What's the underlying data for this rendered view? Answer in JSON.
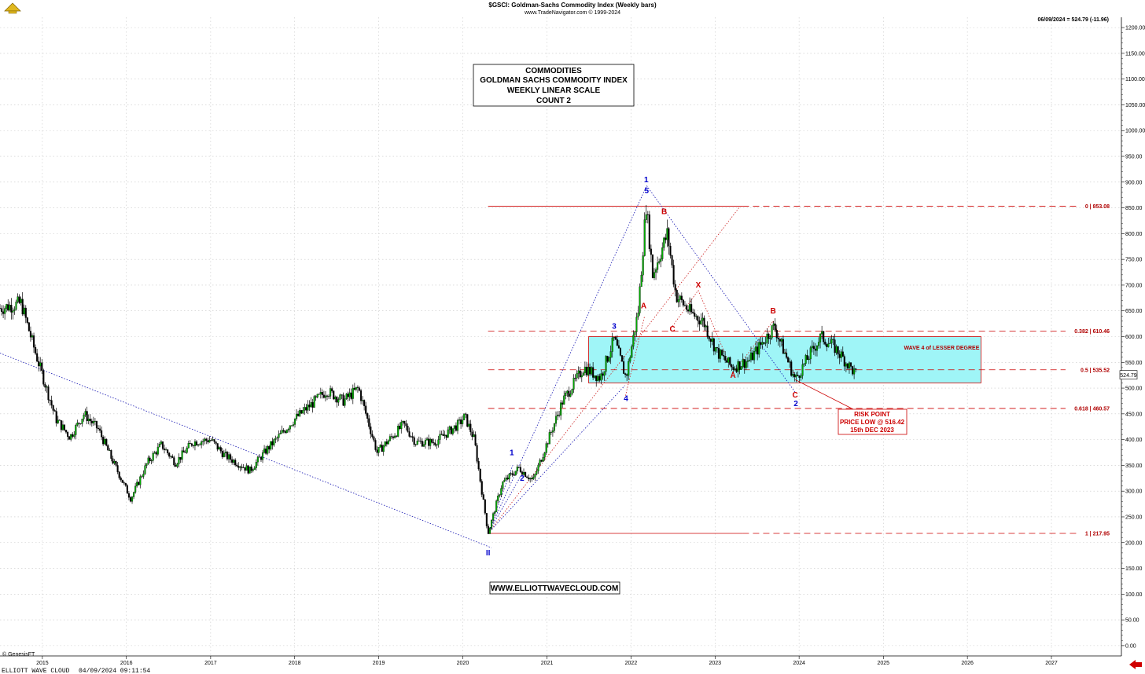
{
  "header": {
    "title": "$GSCI:  Goldman-Sachs Commodity Index  (Weekly bars)",
    "source": "www.TradeNavigator.com © 1999-2024",
    "last_quote": "06/09/2024 = 524.79 (-11.96)"
  },
  "info_box": {
    "lines": [
      "COMMODITIES",
      "GOLDMAN SACHS COMMODITY INDEX",
      "WEEKLY LINEAR SCALE",
      "COUNT 2"
    ]
  },
  "website": "WWW.ELLIOTTWAVECLOUD.COM",
  "copyright": "© GenesisFT",
  "footer": {
    "brand": "ELLIOTT WAVE CLOUD",
    "timestamp": "04/09/2024 09:11:54"
  },
  "price_tag": "524.79",
  "colors": {
    "price": "#000000",
    "bull_body": "#00aa00",
    "fib": "#cc0000",
    "wave_blue": "#0000cc",
    "zone_fill": "#9ff5f7"
  },
  "chart_data": {
    "type": "candlestick",
    "period": "weekly",
    "x_axis": {
      "ticks": [
        "2015",
        "2016",
        "2017",
        "2018",
        "2019",
        "2020",
        "2021",
        "2022",
        "2023",
        "2024",
        "2025",
        "2026",
        "2027"
      ],
      "range": [
        "2014-07-01",
        "2027-11-01"
      ]
    },
    "y_axis": {
      "range": [
        -20,
        1220
      ],
      "step": 50,
      "position": "right"
    },
    "fib_levels": [
      {
        "ratio": "0",
        "price": 853.08,
        "label": "0 | 853.08"
      },
      {
        "ratio": "0.382",
        "price": 610.46,
        "label": "0.382 | 610.46"
      },
      {
        "ratio": "0.5",
        "price": 535.52,
        "label": "0.5 | 535.52"
      },
      {
        "ratio": "0.618",
        "price": 460.57,
        "label": "0.618 | 460.57"
      },
      {
        "ratio": "1",
        "price": 217.95,
        "label": "1 | 217.95"
      }
    ],
    "wave4_zone": {
      "label": "WAVE 4 of LESSER DEGREE",
      "from": "2021-07-01",
      "to": "2026-03-01",
      "top": 600,
      "bottom": 510
    },
    "risk_point": {
      "lines": [
        "RISK POINT",
        "PRICE LOW @ 516.42",
        "15th DEC 2023"
      ],
      "price": 516.42,
      "date": "2023-12-15"
    },
    "wave_labels": [
      {
        "text": "II",
        "date": "2020-04-20",
        "price": 175,
        "color": "blue"
      },
      {
        "text": "1",
        "date": "2020-08-01",
        "price": 370,
        "color": "blue"
      },
      {
        "text": "2",
        "date": "2020-09-15",
        "price": 320,
        "color": "blue"
      },
      {
        "text": "3",
        "date": "2021-10-20",
        "price": 615,
        "color": "blue"
      },
      {
        "text": "4",
        "date": "2021-12-10",
        "price": 475,
        "color": "blue"
      },
      {
        "text": "1",
        "date": "2022-03-08",
        "price": 900,
        "color": "blue"
      },
      {
        "text": "5",
        "date": "2022-03-10",
        "price": 878,
        "color": "blue"
      },
      {
        "text": "2",
        "date": "2023-12-18",
        "price": 465,
        "color": "blue"
      },
      {
        "text": "A",
        "date": "2022-02-25",
        "price": 655,
        "color": "red"
      },
      {
        "text": "B",
        "date": "2022-05-25",
        "price": 838,
        "color": "red"
      },
      {
        "text": "C",
        "date": "2022-06-30",
        "price": 610,
        "color": "red"
      },
      {
        "text": "X",
        "date": "2022-10-20",
        "price": 695,
        "color": "red"
      },
      {
        "text": "A",
        "date": "2023-03-20",
        "price": 520,
        "color": "red"
      },
      {
        "text": "B",
        "date": "2023-09-10",
        "price": 645,
        "color": "red"
      },
      {
        "text": "C",
        "date": "2023-12-15",
        "price": 482,
        "color": "red"
      }
    ],
    "channel_lines": [
      {
        "color": "blue",
        "points": [
          [
            "2014-07-01",
            568
          ],
          [
            "2020-05-05",
            190
          ]
        ]
      },
      {
        "color": "blue",
        "points": [
          [
            "2020-04-20",
            218
          ],
          [
            "2022-03-10",
            893
          ]
        ]
      },
      {
        "color": "blue",
        "points": [
          [
            "2020-04-20",
            218
          ],
          [
            "2020-08-05",
            350
          ]
        ]
      },
      {
        "color": "blue",
        "points": [
          [
            "2020-04-20",
            218
          ],
          [
            "2020-09-10",
            330
          ]
        ]
      },
      {
        "color": "blue",
        "points": [
          [
            "2020-04-20",
            218
          ],
          [
            "2021-12-05",
            505
          ]
        ]
      },
      {
        "color": "blue",
        "points": [
          [
            "2022-03-10",
            893
          ],
          [
            "2023-12-18",
            490
          ]
        ]
      },
      {
        "color": "red",
        "points": [
          [
            "2020-04-20",
            218
          ],
          [
            "2023-04-20",
            853
          ]
        ]
      },
      {
        "color": "red",
        "points": [
          [
            "2021-12-05",
            480
          ],
          [
            "2022-03-01",
            640
          ]
        ]
      },
      {
        "color": "red",
        "points": [
          [
            "2022-06-30",
            620
          ],
          [
            "2022-10-20",
            690
          ]
        ]
      },
      {
        "color": "red",
        "points": [
          [
            "2022-10-20",
            690
          ],
          [
            "2023-03-20",
            530
          ]
        ]
      },
      {
        "color": "red",
        "points": [
          [
            "2023-03-20",
            530
          ],
          [
            "2023-09-10",
            630
          ]
        ]
      },
      {
        "color": "red",
        "points": [
          [
            "2023-09-10",
            630
          ],
          [
            "2023-12-18",
            520
          ]
        ]
      }
    ],
    "price_path": [
      [
        "2014-07-01",
        655
      ],
      [
        "2014-10-01",
        665
      ],
      [
        "2014-12-01",
        570
      ],
      [
        "2015-01-15",
        505
      ],
      [
        "2015-03-01",
        440
      ],
      [
        "2015-05-01",
        405
      ],
      [
        "2015-07-01",
        450
      ],
      [
        "2015-09-01",
        420
      ],
      [
        "2015-11-01",
        360
      ],
      [
        "2016-01-20",
        285
      ],
      [
        "2016-04-01",
        355
      ],
      [
        "2016-06-01",
        390
      ],
      [
        "2016-08-01",
        355
      ],
      [
        "2016-10-15",
        395
      ],
      [
        "2017-01-01",
        400
      ],
      [
        "2017-03-01",
        370
      ],
      [
        "2017-06-20",
        340
      ],
      [
        "2017-09-01",
        380
      ],
      [
        "2018-01-01",
        440
      ],
      [
        "2018-05-20",
        495
      ],
      [
        "2018-08-01",
        475
      ],
      [
        "2018-10-05",
        500
      ],
      [
        "2018-12-25",
        375
      ],
      [
        "2019-04-20",
        430
      ],
      [
        "2019-06-10",
        395
      ],
      [
        "2019-09-01",
        395
      ],
      [
        "2019-12-15",
        430
      ],
      [
        "2020-01-10",
        445
      ],
      [
        "2020-02-20",
        400
      ],
      [
        "2020-04-20",
        218
      ],
      [
        "2020-06-20",
        315
      ],
      [
        "2020-09-01",
        345
      ],
      [
        "2020-11-01",
        320
      ],
      [
        "2021-01-15",
        410
      ],
      [
        "2021-03-10",
        475
      ],
      [
        "2021-06-10",
        540
      ],
      [
        "2021-08-20",
        520
      ],
      [
        "2021-10-20",
        595
      ],
      [
        "2021-12-10",
        520
      ],
      [
        "2022-02-01",
        650
      ],
      [
        "2022-03-08",
        855
      ],
      [
        "2022-04-05",
        720
      ],
      [
        "2022-06-08",
        800
      ],
      [
        "2022-07-15",
        680
      ],
      [
        "2022-09-20",
        645
      ],
      [
        "2022-11-10",
        630
      ],
      [
        "2023-01-10",
        570
      ],
      [
        "2023-03-17",
        540
      ],
      [
        "2023-06-01",
        555
      ],
      [
        "2023-09-15",
        620
      ],
      [
        "2023-12-15",
        516
      ],
      [
        "2024-02-10",
        560
      ],
      [
        "2024-04-05",
        600
      ],
      [
        "2024-06-01",
        580
      ],
      [
        "2024-09-06",
        525
      ]
    ]
  }
}
